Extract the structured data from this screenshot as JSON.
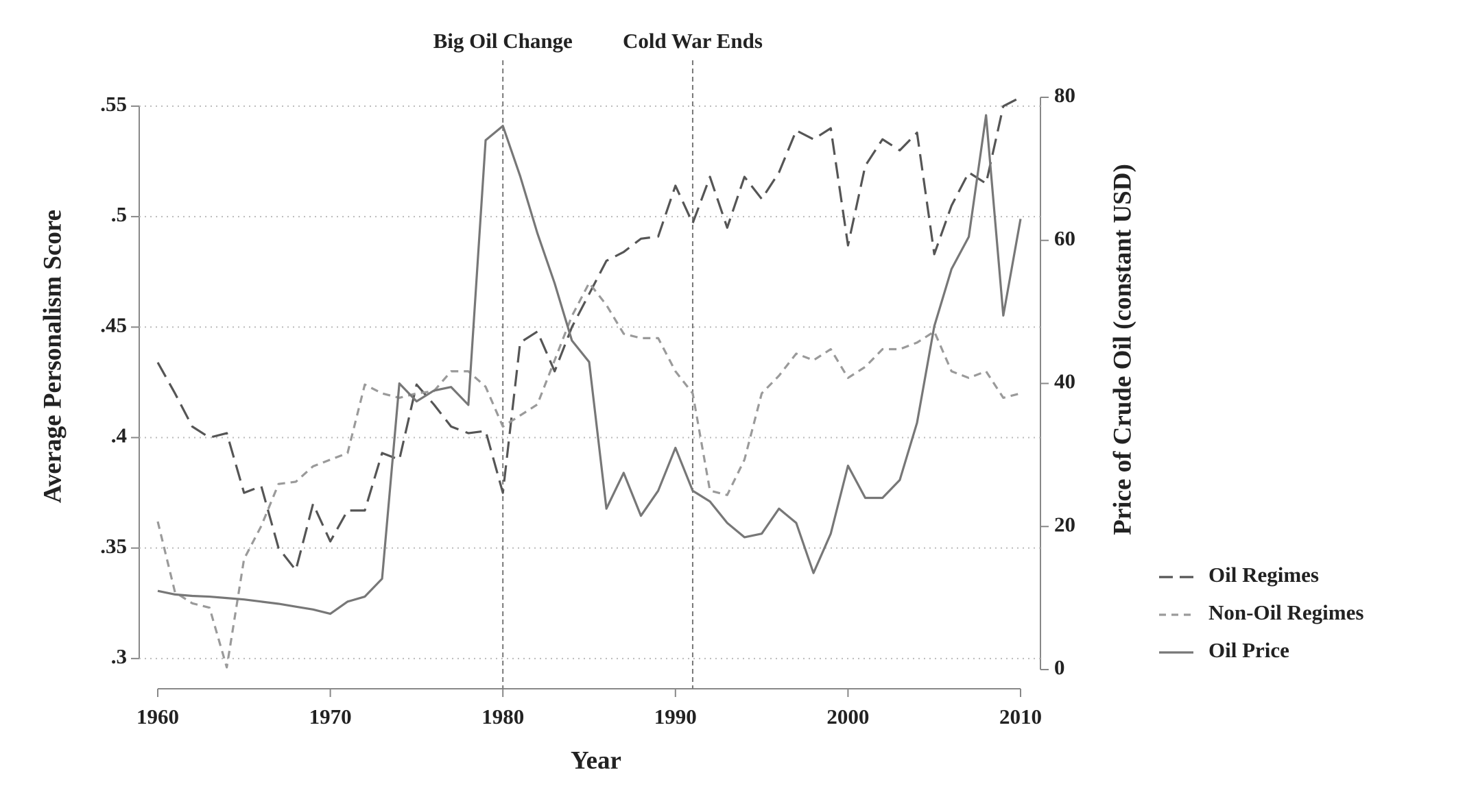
{
  "chart_data": {
    "type": "line",
    "x_label": "Year",
    "y_label": "Average Personalism Score",
    "y2_label": "Price of Crude Oil (constant USD)",
    "x": [
      1960,
      1961,
      1962,
      1963,
      1964,
      1965,
      1966,
      1967,
      1968,
      1969,
      1970,
      1971,
      1972,
      1973,
      1974,
      1975,
      1976,
      1977,
      1978,
      1979,
      1980,
      1981,
      1982,
      1983,
      1984,
      1985,
      1986,
      1987,
      1988,
      1989,
      1990,
      1991,
      1992,
      1993,
      1994,
      1995,
      1996,
      1997,
      1998,
      1999,
      2000,
      2001,
      2002,
      2003,
      2004,
      2005,
      2006,
      2007,
      2008,
      2009,
      2010
    ],
    "series": [
      {
        "name": "Oil Regimes",
        "color": "#555555",
        "style": "long-dash",
        "values": [
          0.434,
          0.42,
          0.405,
          0.4,
          0.402,
          0.375,
          0.378,
          0.35,
          0.34,
          0.37,
          0.353,
          0.367,
          0.367,
          0.393,
          0.39,
          0.424,
          0.415,
          0.405,
          0.402,
          0.403,
          0.375,
          0.443,
          0.448,
          0.43,
          0.45,
          0.465,
          0.48,
          0.484,
          0.49,
          0.491,
          0.514,
          0.497,
          0.518,
          0.495,
          0.518,
          0.508,
          0.52,
          0.539,
          0.535,
          0.54,
          0.487,
          0.523,
          0.535,
          0.53,
          0.538,
          0.483,
          0.505,
          0.52,
          0.515,
          0.55,
          0.554
        ]
      },
      {
        "name": "Non-Oil Regimes",
        "color": "#9a9a9a",
        "style": "short-dash",
        "values": [
          0.362,
          0.33,
          0.325,
          0.323,
          0.296,
          0.345,
          0.36,
          0.379,
          0.38,
          0.387,
          0.39,
          0.393,
          0.424,
          0.42,
          0.418,
          0.42,
          0.421,
          0.43,
          0.43,
          0.423,
          0.405,
          0.41,
          0.415,
          0.435,
          0.455,
          0.47,
          0.46,
          0.447,
          0.445,
          0.445,
          0.43,
          0.42,
          0.376,
          0.374,
          0.39,
          0.42,
          0.428,
          0.438,
          0.435,
          0.44,
          0.427,
          0.432,
          0.44,
          0.44,
          0.443,
          0.448,
          0.43,
          0.427,
          0.43,
          0.418,
          0.42
        ]
      },
      {
        "name": "Oil Price",
        "color": "#777777",
        "style": "solid",
        "axis": "y2",
        "values": [
          11,
          10.5,
          10.3,
          10.2,
          10,
          9.8,
          9.5,
          9.2,
          8.8,
          8.4,
          7.8,
          9.5,
          10.2,
          12.7,
          40,
          37.5,
          39,
          39.5,
          37,
          74,
          76,
          69,
          61,
          54,
          46,
          43,
          22.5,
          27.5,
          21.5,
          25,
          31,
          25,
          23.5,
          20.5,
          18.5,
          19,
          22.5,
          20.5,
          13.5,
          19,
          28.5,
          24,
          24,
          26.5,
          34.5,
          48,
          56,
          60.5,
          77.5,
          49.5,
          63
        ]
      }
    ],
    "events": [
      {
        "x": 1980,
        "label": "Big Oil Change"
      },
      {
        "x": 1991,
        "label": "Cold War Ends"
      }
    ],
    "xlim": [
      1960,
      2010
    ],
    "xticks": [
      1960,
      1970,
      1980,
      1990,
      2000,
      2010
    ],
    "ylim": [
      0.295,
      0.554
    ],
    "yticks": [
      {
        "value": 0.3,
        "label": ".3"
      },
      {
        "value": 0.35,
        "label": ".35"
      },
      {
        "value": 0.4,
        "label": ".4"
      },
      {
        "value": 0.45,
        "label": ".45"
      },
      {
        "value": 0.5,
        "label": ".5"
      },
      {
        "value": 0.55,
        "label": ".55"
      }
    ],
    "y2lim": [
      0,
      80
    ],
    "y2ticks": [
      0,
      20,
      40,
      60,
      80
    ],
    "grid": true,
    "legend": "right"
  }
}
